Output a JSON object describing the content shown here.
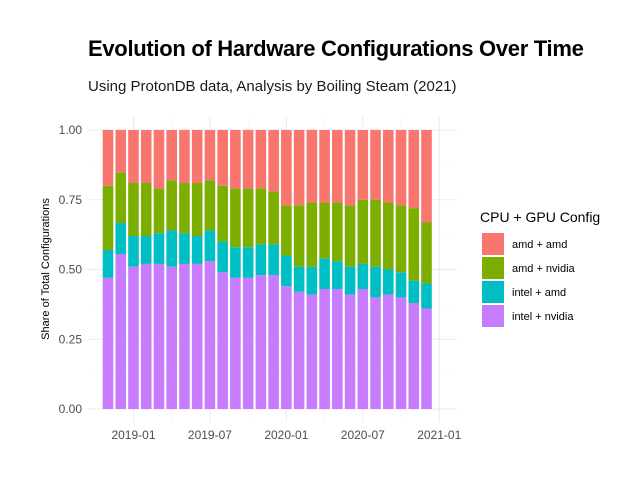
{
  "chart_data": {
    "type": "bar",
    "stacked": true,
    "title": "Evolution of Hardware Configurations Over Time",
    "subtitle": "Using ProtonDB data, Analysis by Boiling Steam (2021)",
    "ylabel": "Share of Total Configurations",
    "xlabel": "",
    "ylim": [
      0,
      1
    ],
    "yticks": [
      "0.00",
      "0.25",
      "0.50",
      "0.75",
      "1.00"
    ],
    "xticks": [
      "2019-01",
      "2019-07",
      "2020-01",
      "2020-07",
      "2021-01"
    ],
    "grid": true,
    "legend_title": "CPU + GPU Config",
    "legend_position": "right",
    "categories": [
      "2018-11",
      "2018-12",
      "2019-01",
      "2019-02",
      "2019-03",
      "2019-04",
      "2019-05",
      "2019-06",
      "2019-07",
      "2019-08",
      "2019-09",
      "2019-10",
      "2019-11",
      "2019-12",
      "2020-01",
      "2020-02",
      "2020-03",
      "2020-04",
      "2020-05",
      "2020-06",
      "2020-07",
      "2020-08",
      "2020-09",
      "2020-10",
      "2020-11",
      "2020-12"
    ],
    "series": [
      {
        "name": "intel + nvidia",
        "color": "#C77CFF",
        "values": [
          0.47,
          0.55,
          0.51,
          0.52,
          0.52,
          0.51,
          0.52,
          0.52,
          0.53,
          0.49,
          0.47,
          0.47,
          0.48,
          0.48,
          0.44,
          0.42,
          0.41,
          0.43,
          0.43,
          0.41,
          0.43,
          0.4,
          0.41,
          0.4,
          0.38,
          0.36
        ]
      },
      {
        "name": "intel + amd",
        "color": "#00BFC4",
        "values": [
          0.1,
          0.11,
          0.11,
          0.1,
          0.11,
          0.13,
          0.11,
          0.1,
          0.11,
          0.11,
          0.11,
          0.11,
          0.11,
          0.11,
          0.11,
          0.09,
          0.1,
          0.11,
          0.1,
          0.1,
          0.09,
          0.11,
          0.09,
          0.09,
          0.08,
          0.09
        ]
      },
      {
        "name": "amd + nvidia",
        "color": "#7CAE00",
        "values": [
          0.23,
          0.18,
          0.19,
          0.19,
          0.16,
          0.18,
          0.18,
          0.19,
          0.18,
          0.2,
          0.21,
          0.21,
          0.2,
          0.19,
          0.18,
          0.22,
          0.23,
          0.2,
          0.21,
          0.22,
          0.23,
          0.24,
          0.24,
          0.24,
          0.26,
          0.22
        ]
      },
      {
        "name": "amd + amd",
        "color": "#F8766D",
        "values": [
          0.2,
          0.15,
          0.19,
          0.19,
          0.21,
          0.18,
          0.19,
          0.19,
          0.18,
          0.2,
          0.21,
          0.21,
          0.21,
          0.22,
          0.27,
          0.27,
          0.26,
          0.26,
          0.26,
          0.27,
          0.25,
          0.25,
          0.26,
          0.27,
          0.28,
          0.33
        ]
      }
    ],
    "legend": [
      {
        "name": "amd + amd",
        "color": "#F8766D"
      },
      {
        "name": "amd + nvidia",
        "color": "#7CAE00"
      },
      {
        "name": "intel + amd",
        "color": "#00BFC4"
      },
      {
        "name": "intel + nvidia",
        "color": "#C77CFF"
      }
    ]
  }
}
